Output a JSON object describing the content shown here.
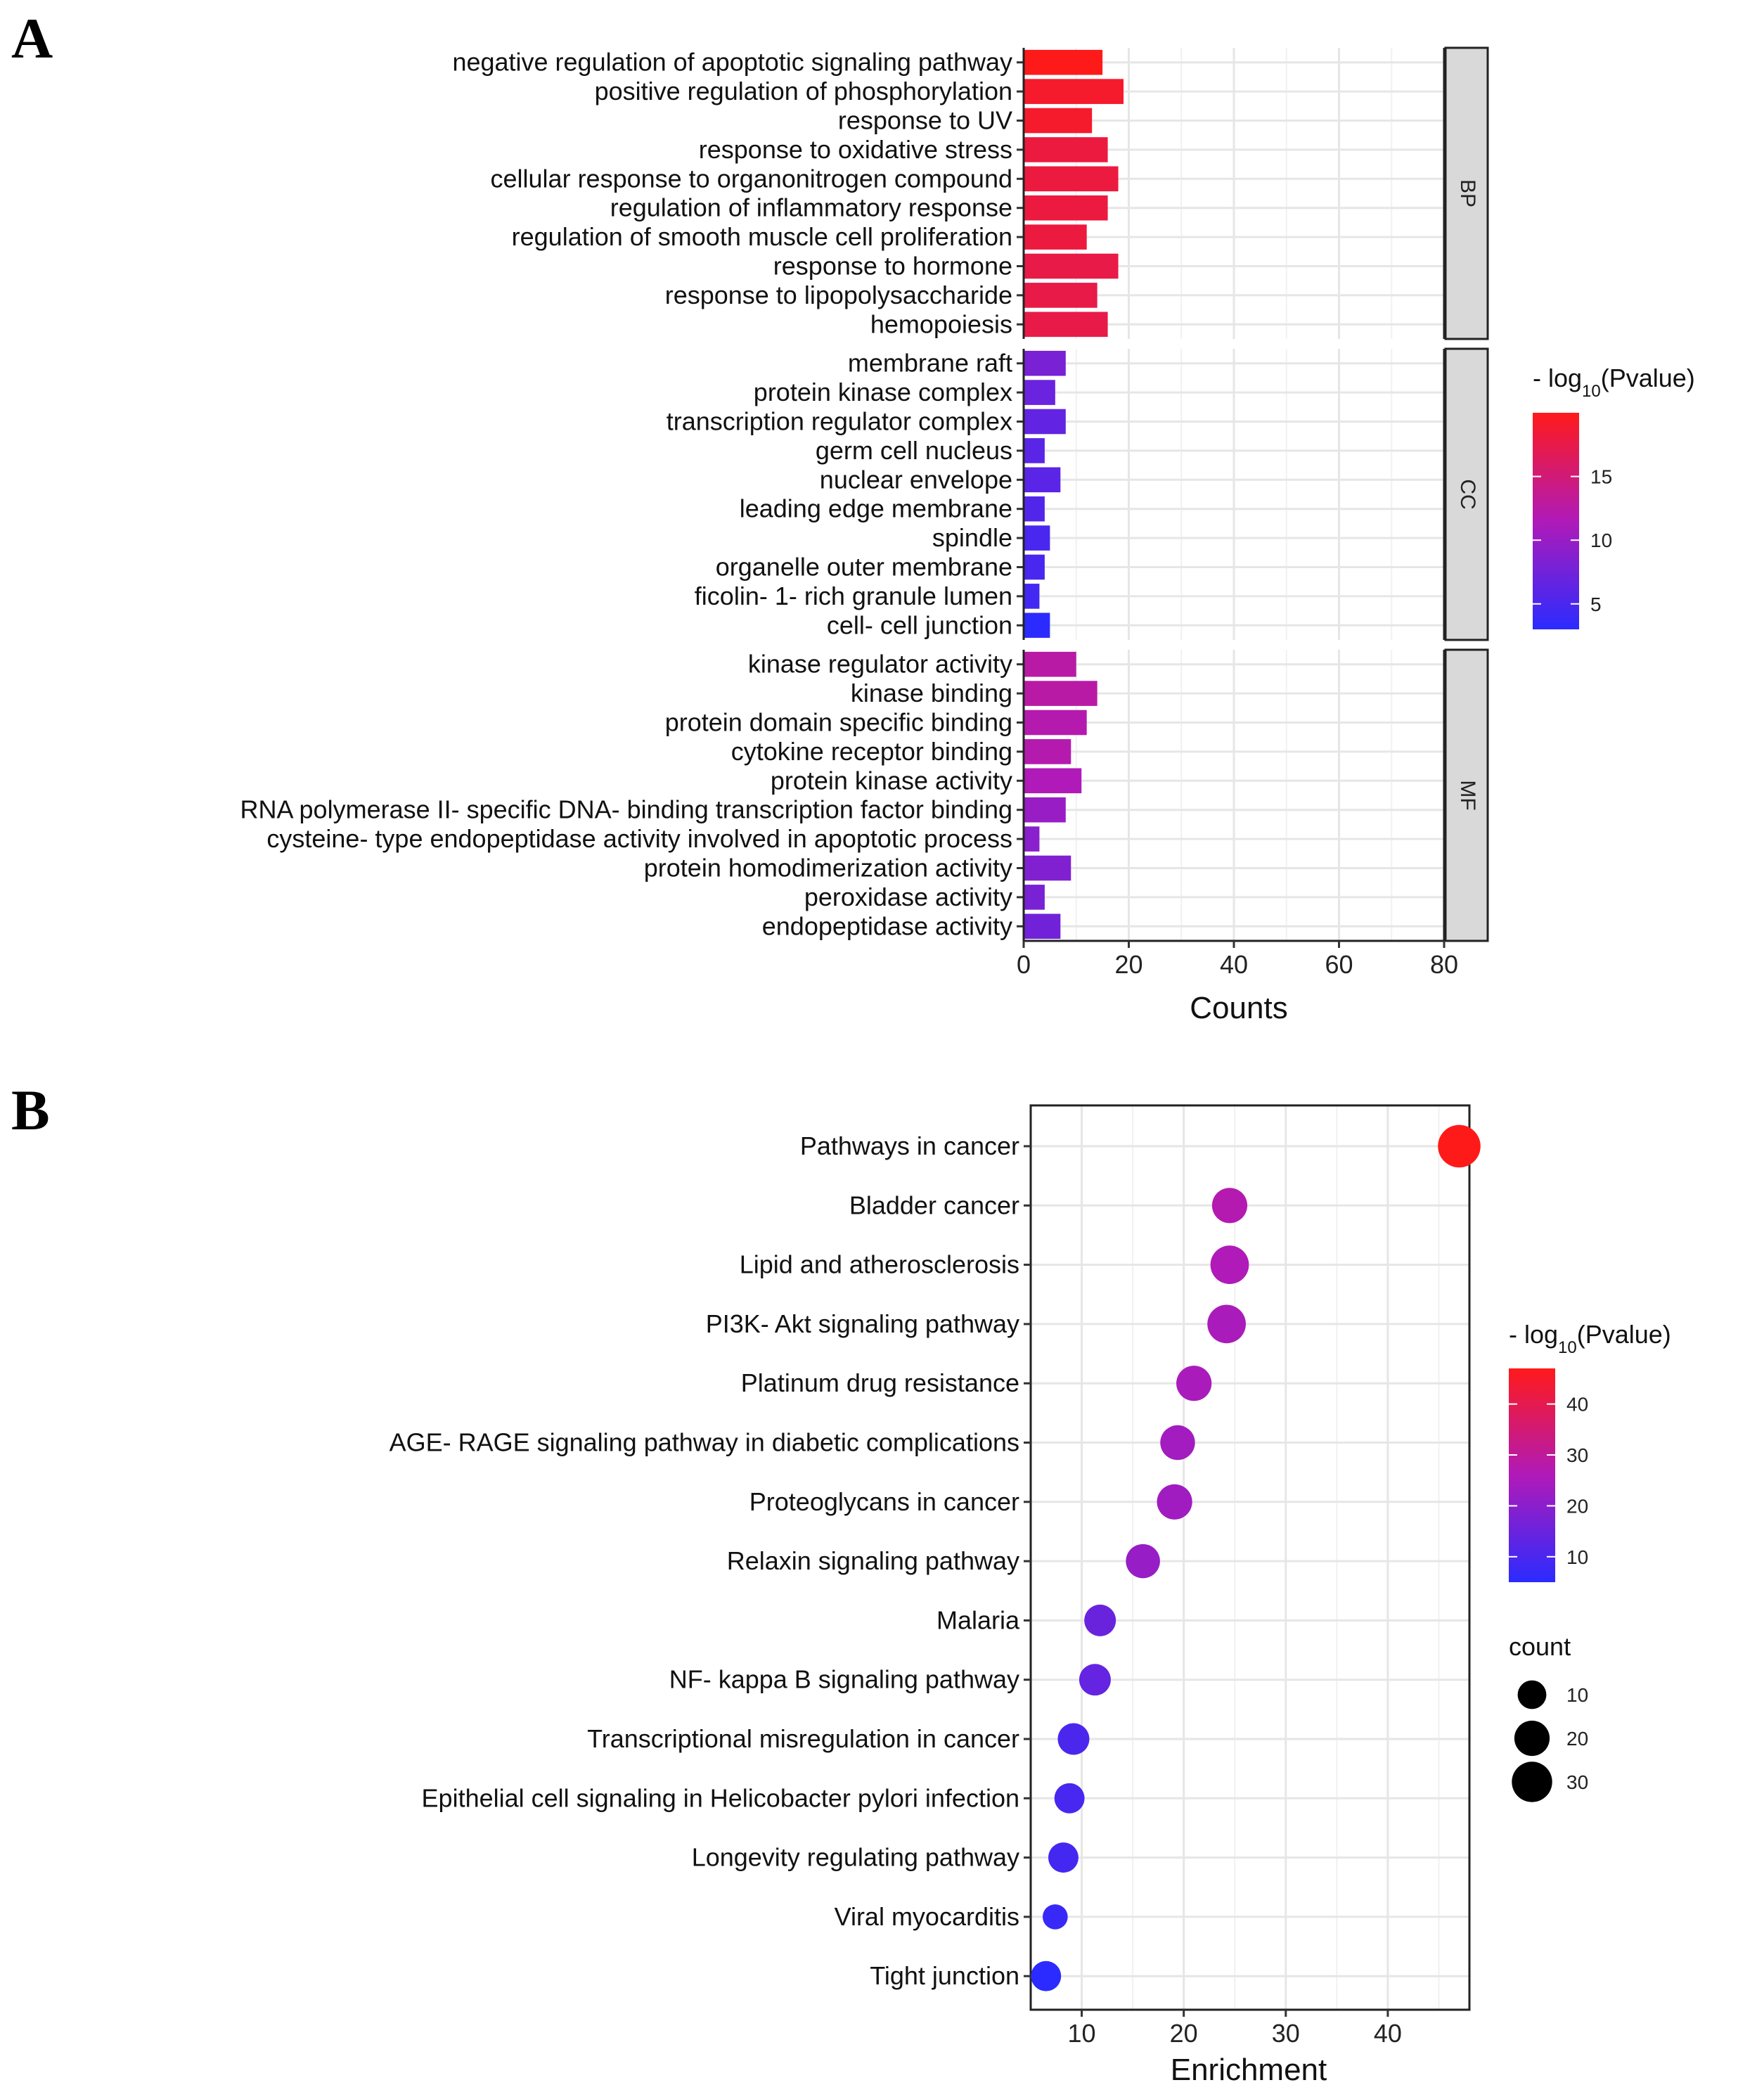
{
  "panels": {
    "a_label": "A",
    "b_label": "B"
  },
  "legend_a": {
    "title_prefix": "- log",
    "title_sub": "10",
    "title_suffix": "(Pvalue)",
    "ticks": [
      "5",
      "10",
      "15"
    ],
    "tick_values": [
      5,
      10,
      15
    ],
    "range": [
      3,
      20
    ],
    "low_color": "#2b2bff",
    "high_color": "#ff1a1a"
  },
  "legend_b": {
    "title_prefix": "- log",
    "title_sub": "10",
    "title_suffix": "(Pvalue)",
    "ticks": [
      "10",
      "20",
      "30",
      "40"
    ],
    "tick_values": [
      10,
      20,
      30,
      40
    ],
    "range": [
      5,
      47
    ],
    "low_color": "#2b2bff",
    "high_color": "#ff1a1a",
    "size_title": "count",
    "size_labels": [
      "10",
      "20",
      "30"
    ],
    "size_values": [
      10,
      20,
      30
    ]
  },
  "chart_data": [
    {
      "type": "bar",
      "orientation": "horizontal",
      "xlabel": "Counts",
      "xlim": [
        0,
        80
      ],
      "xticks": [
        "0",
        "20",
        "40",
        "60",
        "80"
      ],
      "xtick_values": [
        0,
        20,
        40,
        60,
        80
      ],
      "color_metric": "-log10(Pvalue)",
      "facets": [
        {
          "name": "BP",
          "categories": [
            "negative regulation of apoptotic signaling pathway",
            "positive regulation of phosphorylation",
            "response to UV",
            "response to oxidative stress",
            "cellular response to organonitrogen compound",
            "regulation of inflammatory response",
            "regulation of smooth muscle cell proliferation",
            "response to hormone",
            "response to lipopolysaccharide",
            "hemopoiesis"
          ],
          "values": [
            15,
            19,
            13,
            16,
            18,
            16,
            12,
            18,
            14,
            16
          ],
          "neglog10p": [
            20,
            19,
            19,
            18,
            18,
            18,
            18,
            17.5,
            17.5,
            17.5
          ]
        },
        {
          "name": "CC",
          "categories": [
            "membrane raft",
            "protein kinase complex",
            "transcription regulator complex",
            "germ cell nucleus",
            "nuclear envelope",
            "leading edge membrane",
            "spindle",
            "organelle outer membrane",
            "ficolin- 1- rich granule lumen",
            "cell- cell junction"
          ],
          "values": [
            8,
            6,
            8,
            4,
            7,
            4,
            5,
            4,
            3,
            5
          ],
          "neglog10p": [
            8,
            7,
            6.5,
            6,
            6,
            5.5,
            5,
            5,
            4.5,
            3
          ]
        },
        {
          "name": "MF",
          "categories": [
            "kinase regulator activity",
            "kinase binding",
            "protein domain specific binding",
            "cytokine receptor binding",
            "protein kinase activity",
            "RNA polymerase II- specific DNA- binding transcription factor binding",
            "cysteine- type endopeptidase activity involved in apoptotic process",
            "protein homodimerization activity",
            "peroxidase activity",
            "endopeptidase activity"
          ],
          "values": [
            10,
            14,
            12,
            9,
            11,
            8,
            3,
            9,
            4,
            7
          ],
          "neglog10p": [
            12.5,
            12.5,
            12,
            12,
            11.5,
            10,
            9,
            8.5,
            8,
            7.5
          ]
        }
      ]
    },
    {
      "type": "scatter",
      "xlabel": "Enrichment",
      "xlim": [
        5,
        48
      ],
      "xticks": [
        "10",
        "20",
        "30",
        "40"
      ],
      "xtick_values": [
        10,
        20,
        30,
        40
      ],
      "color_metric": "-log10(Pvalue)",
      "size_metric": "count",
      "categories": [
        "Pathways in cancer",
        "Bladder cancer",
        "Lipid and atherosclerosis",
        "PI3K- Akt signaling pathway",
        "Platinum drug resistance",
        "AGE- RAGE signaling pathway in diabetic complications",
        "Proteoglycans in cancer",
        "Relaxin signaling pathway",
        "Malaria",
        "NF- kappa B signaling pathway",
        "Transcriptional misregulation in cancer",
        "Epithelial cell signaling in Helicobacter pylori infection",
        "Longevity regulating pathway",
        "Viral myocarditis",
        "Tight junction"
      ],
      "x": [
        47,
        24.5,
        24.5,
        24.2,
        21,
        19.4,
        19.1,
        16,
        11.8,
        11.3,
        9.2,
        8.8,
        8.2,
        7.4,
        6.5
      ],
      "neglog10p": [
        47,
        27,
        26,
        25,
        25,
        24,
        23.5,
        22,
        15,
        14,
        10,
        9.5,
        9,
        7,
        5
      ],
      "count": [
        35,
        20,
        26,
        26,
        20,
        19,
        20,
        18,
        14,
        14,
        14,
        12,
        12,
        6,
        12
      ]
    }
  ]
}
